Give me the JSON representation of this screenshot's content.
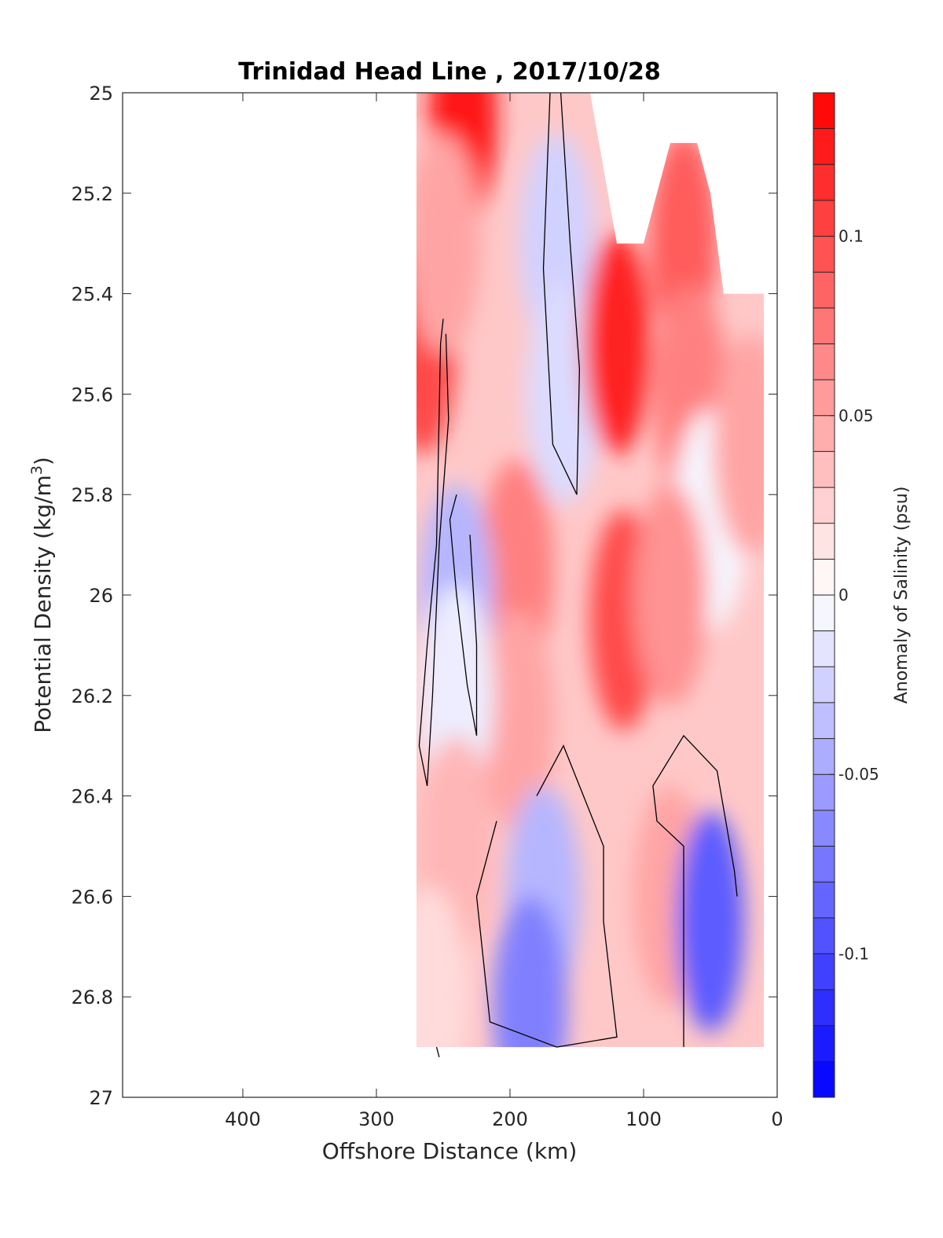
{
  "chart_data": {
    "type": "heatmap",
    "subtype": "filled-contour",
    "title": "Trinidad Head Line , 2017/10/28",
    "xlabel": "Offshore Distance (km)",
    "ylabel_main": "Potential Density (kg/m",
    "ylabel_sup": "3",
    "ylabel_end": ")",
    "colorbar_label": "Anomaly of Salinity (psu)",
    "xlim": [
      490,
      0
    ],
    "ylim": [
      27,
      25
    ],
    "y_reversed": true,
    "x_reversed": true,
    "x_ticks": [
      400,
      300,
      200,
      100,
      0
    ],
    "x_tick_labels": [
      "400",
      "300",
      "200",
      "100",
      "0"
    ],
    "y_ticks": [
      25,
      25.2,
      25.4,
      25.6,
      25.8,
      26,
      26.2,
      26.4,
      26.6,
      26.8,
      27
    ],
    "y_tick_labels": [
      "25",
      "25.2",
      "25.4",
      "25.6",
      "25.8",
      "26",
      "26.2",
      "26.4",
      "26.6",
      "26.8",
      "27"
    ],
    "colorbar_range": [
      -0.14,
      0.14
    ],
    "colorbar_step": 0.01,
    "colorbar_ticks": [
      0.1,
      0.05,
      0,
      -0.05,
      -0.1
    ],
    "colorbar_tick_labels": [
      "0.1",
      "0.05",
      "0",
      "-0.05",
      "-0.1"
    ],
    "colors": {
      "positive": "#ff0000",
      "negative": "#0000ff",
      "zero": "#ffffff",
      "contour": "#000000"
    },
    "data_extent": {
      "x_min_km": 10,
      "x_max_km": 270,
      "sigma_min": 25,
      "sigma_max": 26.9
    },
    "top_boundary": [
      [
        270,
        25
      ],
      [
        140,
        25
      ],
      [
        120,
        25.3
      ],
      [
        100,
        25.3
      ],
      [
        80,
        25.1
      ],
      [
        60,
        25.1
      ],
      [
        50,
        25.2
      ],
      [
        40,
        25.4
      ],
      [
        10,
        25.4
      ]
    ],
    "features": [
      {
        "x": 235,
        "y": 25.05,
        "value": 0.13
      },
      {
        "x": 265,
        "y": 25.5,
        "value": 0.1
      },
      {
        "x": 250,
        "y": 25.3,
        "value": 0.05
      },
      {
        "x": 165,
        "y": 25.3,
        "value": -0.025
      },
      {
        "x": 160,
        "y": 25.6,
        "value": -0.02
      },
      {
        "x": 120,
        "y": 25.5,
        "value": 0.12
      },
      {
        "x": 115,
        "y": 26.05,
        "value": 0.1
      },
      {
        "x": 70,
        "y": 25.3,
        "value": 0.09
      },
      {
        "x": 65,
        "y": 25.6,
        "value": 0.07
      },
      {
        "x": 195,
        "y": 25.95,
        "value": 0.07
      },
      {
        "x": 195,
        "y": 26.25,
        "value": 0.05
      },
      {
        "x": 240,
        "y": 26.0,
        "value": -0.04
      },
      {
        "x": 240,
        "y": 26.2,
        "value": -0.01
      },
      {
        "x": 50,
        "y": 25.85,
        "value": -0.005
      },
      {
        "x": 20,
        "y": 25.7,
        "value": 0.05
      },
      {
        "x": 80,
        "y": 26.0,
        "value": 0.06
      },
      {
        "x": 80,
        "y": 26.6,
        "value": 0.05
      },
      {
        "x": 240,
        "y": 26.5,
        "value": 0.04
      },
      {
        "x": 175,
        "y": 26.6,
        "value": -0.04
      },
      {
        "x": 185,
        "y": 26.82,
        "value": -0.07
      },
      {
        "x": 50,
        "y": 26.65,
        "value": -0.09
      },
      {
        "x": 260,
        "y": 26.8,
        "value": 0.02
      }
    ],
    "zero_contours": [
      [
        [
          250,
          25.45
        ],
        [
          252,
          25.5
        ],
        [
          255,
          25.9
        ],
        [
          262,
          26.1
        ],
        [
          268,
          26.3
        ],
        [
          262,
          26.38
        ],
        [
          258,
          26.2
        ],
        [
          253,
          25.9
        ],
        [
          246,
          25.65
        ],
        [
          248,
          25.48
        ]
      ],
      [
        [
          230,
          25.88
        ],
        [
          225,
          26.1
        ],
        [
          225,
          26.28
        ],
        [
          232,
          26.18
        ],
        [
          240,
          26.0
        ],
        [
          245,
          25.85
        ],
        [
          240,
          25.8
        ]
      ],
      [
        [
          170,
          25.0
        ],
        [
          175,
          25.35
        ],
        [
          168,
          25.7
        ],
        [
          150,
          25.8
        ],
        [
          148,
          25.55
        ],
        [
          155,
          25.3
        ],
        [
          162,
          25.0
        ]
      ],
      [
        [
          180,
          26.4
        ],
        [
          160,
          26.3
        ],
        [
          130,
          26.5
        ],
        [
          130,
          26.65
        ],
        [
          120,
          26.88
        ],
        [
          165,
          26.9
        ],
        [
          215,
          26.85
        ],
        [
          225,
          26.6
        ],
        [
          210,
          26.45
        ]
      ],
      [
        [
          70,
          26.9
        ],
        [
          70,
          26.5
        ],
        [
          90,
          26.45
        ],
        [
          93,
          26.38
        ],
        [
          70,
          26.28
        ],
        [
          45,
          26.35
        ],
        [
          32,
          26.55
        ],
        [
          30,
          26.6
        ]
      ],
      [
        [
          255,
          26.9
        ],
        [
          253,
          26.92
        ]
      ]
    ]
  }
}
